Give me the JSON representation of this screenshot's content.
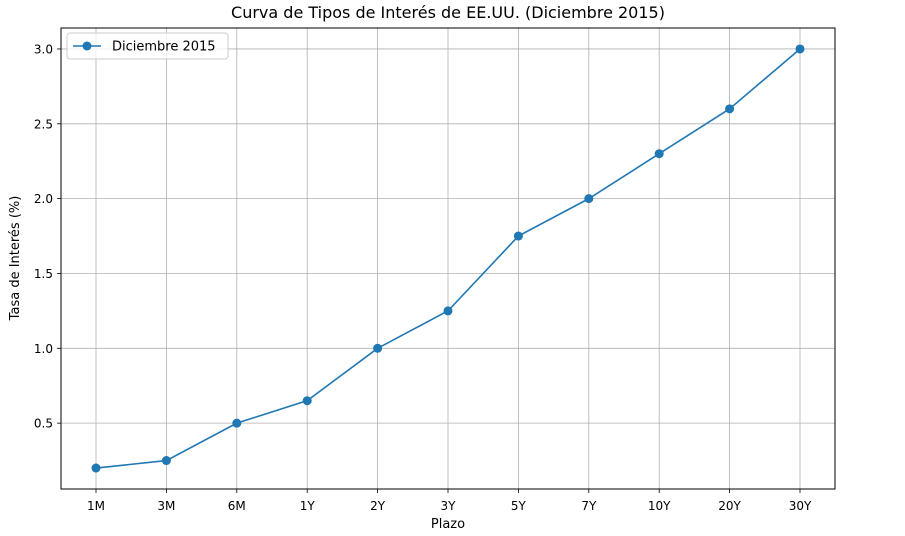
{
  "chart_data": {
    "type": "line",
    "title": "Curva de Tipos de Interés de EE.UU. (Diciembre 2015)",
    "xlabel": "Plazo",
    "ylabel": "Tasa de Interés (%)",
    "categories": [
      "1M",
      "3M",
      "6M",
      "1Y",
      "2Y",
      "3Y",
      "5Y",
      "7Y",
      "10Y",
      "20Y",
      "30Y"
    ],
    "series": [
      {
        "name": "Diciembre 2015",
        "values": [
          0.2,
          0.25,
          0.5,
          0.65,
          1.0,
          1.25,
          1.75,
          2.0,
          2.3,
          2.6,
          3.0
        ],
        "color": "#1f77b4",
        "marker": "circle"
      }
    ],
    "ylim": [
      0.06,
      3.14
    ],
    "yticks": [
      0.5,
      1.0,
      1.5,
      2.0,
      2.5,
      3.0
    ],
    "ytick_labels": [
      "0.5",
      "1.0",
      "1.5",
      "2.0",
      "2.5",
      "3.0"
    ],
    "grid": true,
    "legend": "top-left"
  }
}
